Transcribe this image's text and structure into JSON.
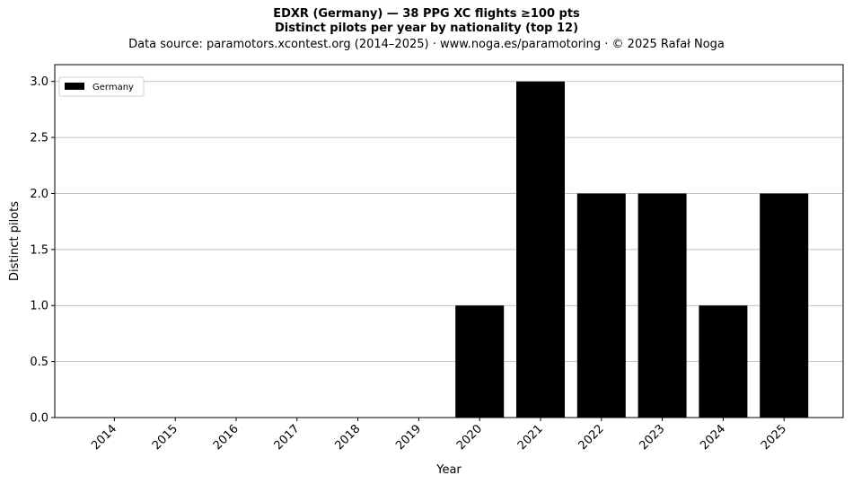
{
  "chart_data": {
    "type": "bar",
    "title_lines": [
      "EDXR (Germany)  —  38 PPG XC flights ≥100 pts",
      "Distinct pilots per year by nationality (top 12)"
    ],
    "subtitle": "Data source: paramotors.xcontest.org (2014–2025)  ·  www.noga.es/paramotoring  ·  © 2025 Rafał Noga",
    "xlabel": "Year",
    "ylabel": "Distinct pilots",
    "categories": [
      "2014",
      "2015",
      "2016",
      "2017",
      "2018",
      "2019",
      "2020",
      "2021",
      "2022",
      "2023",
      "2024",
      "2025"
    ],
    "series": [
      {
        "name": "Germany",
        "color": "#000000",
        "values": [
          0,
          0,
          0,
          0,
          0,
          0,
          1,
          3,
          2,
          2,
          1,
          2
        ]
      }
    ],
    "ylim": [
      0,
      3.15
    ],
    "yticks": [
      0,
      0.5,
      1,
      1.5,
      2,
      2.5,
      3
    ],
    "ytick_labels": [
      "0.0",
      "0.5",
      "1.0",
      "1.5",
      "2.0",
      "2.5",
      "3.0"
    ],
    "grid": "horizontal",
    "legend": "top-left"
  }
}
